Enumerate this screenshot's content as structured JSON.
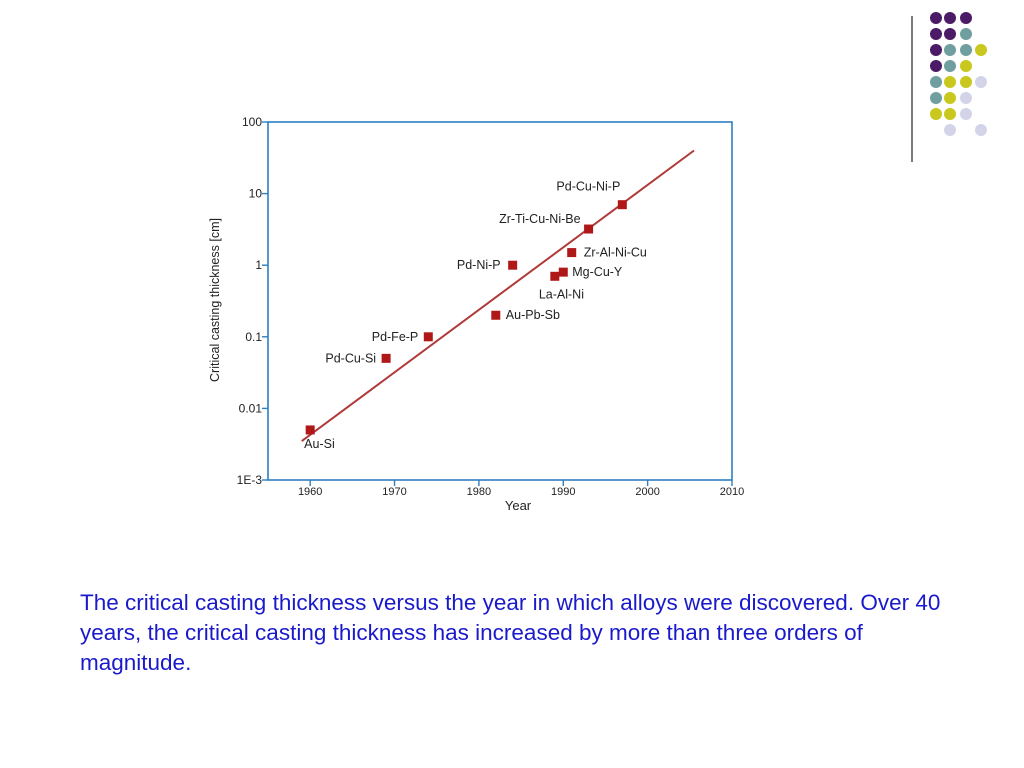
{
  "slide": {
    "caption": "The critical casting thickness versus the year in which alloys were discovered. Over 40 years, the critical casting thickness has increased by more than three orders of magnitude.",
    "dot_colors": {
      "purple": "#4b1b66",
      "teal": "#6f9f9e",
      "yellow": "#c8c81e",
      "lavender": "#d4d4e8"
    },
    "divider_color": "#7a7a7a"
  },
  "chart_data": {
    "type": "scatter",
    "xlabel": "Year",
    "ylabel": "Critical casting thickness [cm]",
    "xlim": [
      1955,
      2010
    ],
    "ylim": [
      0.001,
      100
    ],
    "y_scale": "log",
    "x_ticks": [
      "1960",
      "1970",
      "1980",
      "1990",
      "2000",
      "2010"
    ],
    "y_ticks": [
      "1E-3",
      "0.01",
      "0.1",
      "1",
      "10",
      "100"
    ],
    "grid": false,
    "axis_color": "#2d7fc1",
    "marker_color": "#b01818",
    "line_color": "#b03a3a",
    "points": [
      {
        "label": "Au-Si",
        "x": 1960,
        "y": 0.005
      },
      {
        "label": "Pd-Cu-Si",
        "x": 1969,
        "y": 0.05
      },
      {
        "label": "Pd-Fe-P",
        "x": 1974,
        "y": 0.1
      },
      {
        "label": "Au-Pb-Sb",
        "x": 1982,
        "y": 0.2
      },
      {
        "label": "Pd-Ni-P",
        "x": 1984,
        "y": 1
      },
      {
        "label": "La-Al-Ni",
        "x": 1989,
        "y": 0.7
      },
      {
        "label": "Mg-Cu-Y",
        "x": 1990,
        "y": 0.8
      },
      {
        "label": "Zr-Al-Ni-Cu",
        "x": 1991,
        "y": 1.5
      },
      {
        "label": "Zr-Ti-Cu-Ni-Be",
        "x": 1993,
        "y": 3.2
      },
      {
        "label": "Pd-Cu-Ni-P",
        "x": 1997,
        "y": 7
      }
    ],
    "trend_line": {
      "x": [
        1959,
        2005.5
      ],
      "y": [
        0.0035,
        40
      ]
    }
  }
}
